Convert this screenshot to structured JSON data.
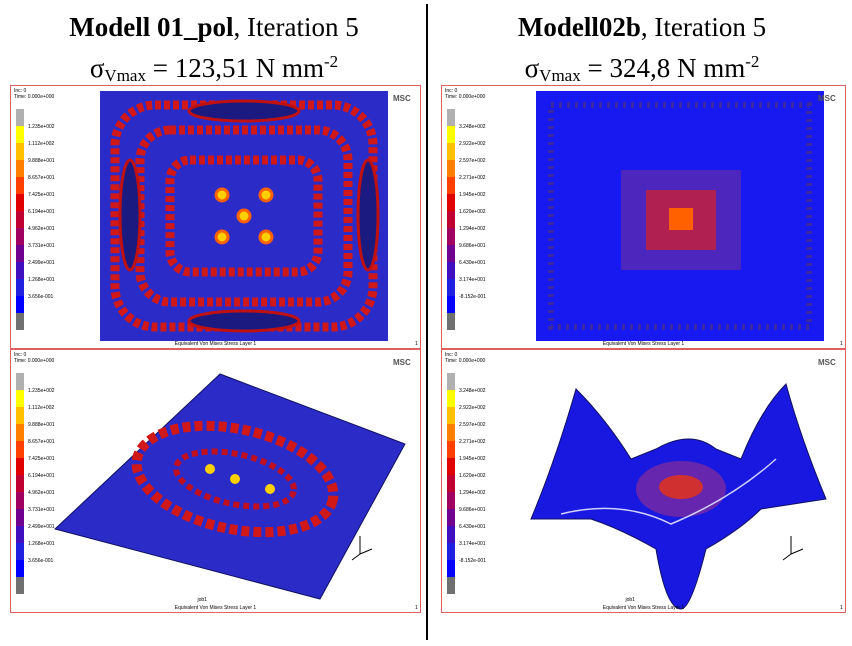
{
  "columns": [
    {
      "title_bold": "Modell 01_pol",
      "title_rest": ", Iteration 5",
      "sigma": "σ",
      "sub": "Vmax",
      "formula": " = 123,51 N mm",
      "sup": "-2",
      "panels": [
        {
          "inc": "Inc:  0",
          "time": "Time:  0.000e+000",
          "logo": "MSC",
          "legend": [
            "1.235e+002",
            "1.112e+002",
            "9.888e+001",
            "8.657e+001",
            "7.425e+001",
            "6.194e+001",
            "4.962e+001",
            "3.731e+001",
            "2.499e+001",
            "1.268e+001",
            "3.656e-001"
          ],
          "footer": "Equivalent Von Mises Stress Layer 1",
          "page": "1"
        },
        {
          "inc": "Inc:  0",
          "time": "Time:  0.000e+000",
          "logo": "MSC",
          "legend": [
            "1.235e+002",
            "1.112e+002",
            "9.888e+001",
            "8.657e+001",
            "7.425e+001",
            "6.194e+001",
            "4.962e+001",
            "3.731e+001",
            "2.499e+001",
            "1.268e+001",
            "3.656e-001"
          ],
          "job": "job1",
          "footer": "Equivalent Von Mises Stress Layer 1",
          "page": "1"
        }
      ]
    },
    {
      "title_bold": "Modell02b",
      "title_rest": ", Iteration 5",
      "sigma": "σ",
      "sub": "Vmax",
      "formula": " = 324,8 N mm",
      "sup": "-2",
      "panels": [
        {
          "inc": "Inc:  0",
          "time": "Time:  0.000e+000",
          "logo": "MSC",
          "legend": [
            "3.248e+002",
            "2.922e+002",
            "2.597e+002",
            "2.271e+002",
            "1.945e+002",
            "1.620e+002",
            "1.294e+002",
            "9.686e+001",
            "6.430e+001",
            "3.174e+001",
            "-8.152e-001"
          ],
          "footer": "Equivalent Von Mises Stress Layer 1",
          "page": "1"
        },
        {
          "inc": "Inc:  0",
          "time": "Time:  0.000e+000",
          "logo": "MSC",
          "legend": [
            "3.248e+002",
            "2.922e+002",
            "2.597e+002",
            "2.271e+002",
            "1.945e+002",
            "1.620e+002",
            "1.294e+002",
            "9.686e+001",
            "6.430e+001",
            "3.174e+001",
            "-8.152e-001"
          ],
          "job": "job1",
          "footer": "Equivalent Von Mises Stress Layer 1",
          "page": "1"
        }
      ]
    }
  ]
}
